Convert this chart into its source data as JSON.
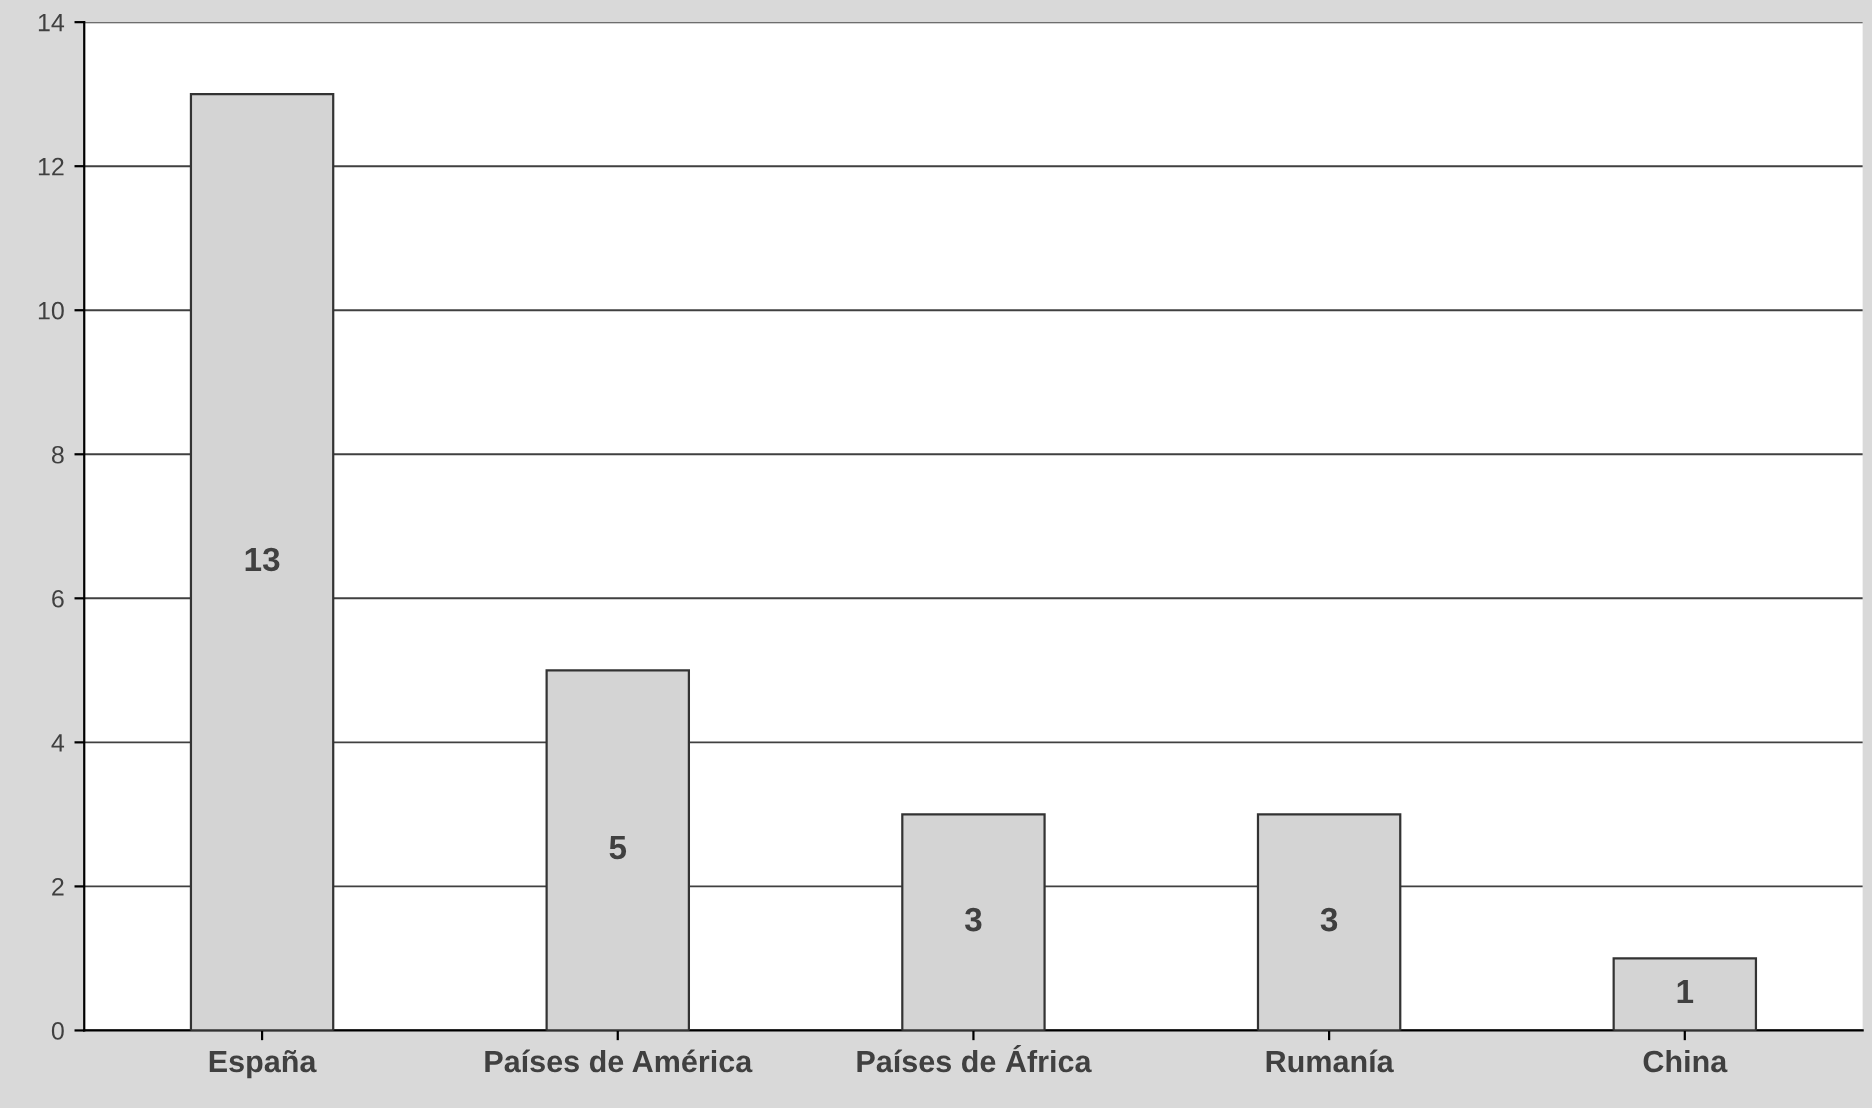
{
  "chart_data": {
    "type": "bar",
    "categories": [
      "España",
      "Países de América",
      "Países de África",
      "Rumanía",
      "China"
    ],
    "values": [
      13,
      5,
      3,
      3,
      1
    ],
    "color": "#d4d4d4",
    "ylim": [
      0,
      14
    ],
    "yticks": [
      0,
      2,
      4,
      6,
      8,
      10,
      12,
      14
    ],
    "grid": "y",
    "data_labels": true
  }
}
